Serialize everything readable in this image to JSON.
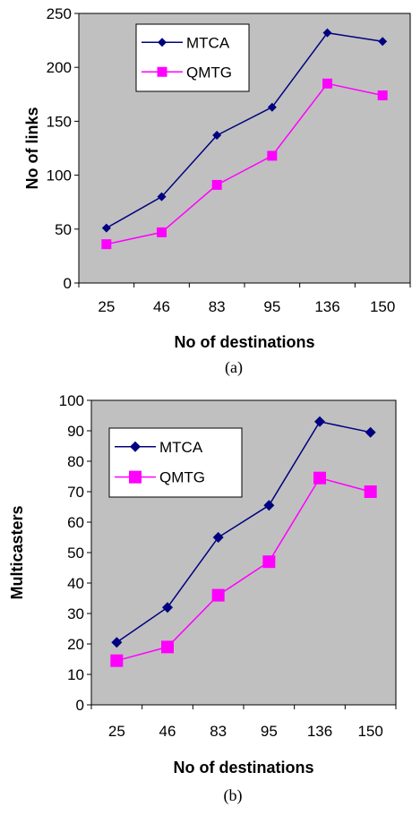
{
  "colors": {
    "plot_bg": "#c0c0c0",
    "series_mtca": "#000080",
    "series_qmtg": "#ff00ff"
  },
  "chart_data": [
    {
      "type": "line",
      "caption": "(a)",
      "xlabel": "No of destinations",
      "ylabel": "No of links",
      "categories": [
        "25",
        "46",
        "83",
        "95",
        "136",
        "150"
      ],
      "ylim": [
        0,
        250
      ],
      "yticks": [
        "0",
        "50",
        "100",
        "150",
        "200",
        "250"
      ],
      "legend_position": "top-left",
      "grid": false,
      "series": [
        {
          "name": "MTCA",
          "marker": "diamond",
          "values": [
            51,
            80,
            137,
            163,
            232,
            224
          ]
        },
        {
          "name": "QMTG",
          "marker": "square",
          "values": [
            36,
            47,
            91,
            118,
            185,
            174
          ]
        }
      ]
    },
    {
      "type": "line",
      "caption": "(b)",
      "xlabel": "No of destinations",
      "ylabel": "Multicasters",
      "categories": [
        "25",
        "46",
        "83",
        "95",
        "136",
        "150"
      ],
      "ylim": [
        0,
        100
      ],
      "yticks": [
        "0",
        "10",
        "20",
        "30",
        "40",
        "50",
        "60",
        "70",
        "80",
        "90",
        "100"
      ],
      "legend_position": "top-left",
      "grid": false,
      "series": [
        {
          "name": "MTCA",
          "marker": "diamond",
          "values": [
            20.5,
            32,
            55,
            65.5,
            93,
            89.5
          ]
        },
        {
          "name": "QMTG",
          "marker": "square",
          "values": [
            14.5,
            19,
            36,
            47,
            74.5,
            70
          ]
        }
      ]
    }
  ]
}
